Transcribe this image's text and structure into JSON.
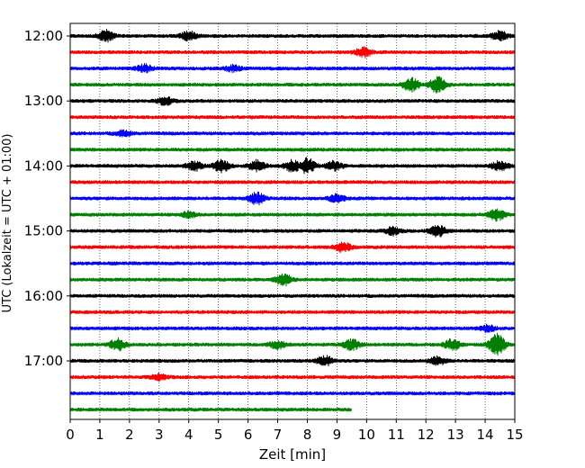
{
  "chart_data": {
    "type": "line",
    "title": "",
    "xlabel": "Zeit  [min]",
    "ylabel": "UTC (Lokalzeit = UTC + 01:00)",
    "xlim": [
      0,
      15
    ],
    "x_ticks": [
      0,
      1,
      2,
      3,
      4,
      5,
      6,
      7,
      8,
      9,
      10,
      11,
      12,
      13,
      14,
      15
    ],
    "y_tick_labels": [
      "12:00",
      "13:00",
      "14:00",
      "15:00",
      "16:00",
      "17:00"
    ],
    "grid": "vertical dotted",
    "colors": [
      "#000000",
      "#ff0000",
      "#0000ff",
      "#008000"
    ],
    "traces": [
      {
        "time": "12:00",
        "color": "#000000",
        "end_min": 15,
        "events": [
          {
            "t": 1.2,
            "amp": 6
          },
          {
            "t": 4.0,
            "amp": 5
          },
          {
            "t": 14.5,
            "amp": 5
          }
        ]
      },
      {
        "time": "12:15",
        "color": "#ff0000",
        "end_min": 15,
        "events": [
          {
            "t": 9.9,
            "amp": 5
          }
        ]
      },
      {
        "time": "12:30",
        "color": "#0000ff",
        "end_min": 15,
        "events": [
          {
            "t": 2.5,
            "amp": 4
          },
          {
            "t": 5.5,
            "amp": 3
          }
        ]
      },
      {
        "time": "12:45",
        "color": "#008000",
        "end_min": 15,
        "events": [
          {
            "t": 11.5,
            "amp": 7
          },
          {
            "t": 12.4,
            "amp": 9
          }
        ]
      },
      {
        "time": "13:00",
        "color": "#000000",
        "end_min": 15,
        "events": [
          {
            "t": 3.2,
            "amp": 4
          }
        ]
      },
      {
        "time": "13:15",
        "color": "#ff0000",
        "end_min": 15,
        "events": []
      },
      {
        "time": "13:30",
        "color": "#0000ff",
        "end_min": 15,
        "events": [
          {
            "t": 1.8,
            "amp": 3
          }
        ]
      },
      {
        "time": "13:45",
        "color": "#008000",
        "end_min": 15,
        "events": []
      },
      {
        "time": "14:00",
        "color": "#000000",
        "end_min": 15,
        "events": [
          {
            "t": 4.2,
            "amp": 5
          },
          {
            "t": 5.1,
            "amp": 6
          },
          {
            "t": 6.3,
            "amp": 6
          },
          {
            "t": 7.5,
            "amp": 6
          },
          {
            "t": 8.0,
            "amp": 8
          },
          {
            "t": 8.9,
            "amp": 5
          },
          {
            "t": 14.5,
            "amp": 5
          }
        ]
      },
      {
        "time": "14:15",
        "color": "#ff0000",
        "end_min": 15,
        "events": []
      },
      {
        "time": "14:30",
        "color": "#0000ff",
        "end_min": 15,
        "events": [
          {
            "t": 6.3,
            "amp": 6
          },
          {
            "t": 9.0,
            "amp": 4
          }
        ]
      },
      {
        "time": "14:45",
        "color": "#008000",
        "end_min": 15,
        "events": [
          {
            "t": 4.0,
            "amp": 3
          },
          {
            "t": 14.4,
            "amp": 6
          }
        ]
      },
      {
        "time": "15:00",
        "color": "#000000",
        "end_min": 15,
        "events": [
          {
            "t": 10.9,
            "amp": 4
          },
          {
            "t": 12.4,
            "amp": 6
          }
        ]
      },
      {
        "time": "15:15",
        "color": "#ff0000",
        "end_min": 15,
        "events": [
          {
            "t": 9.2,
            "amp": 5
          }
        ]
      },
      {
        "time": "15:30",
        "color": "#0000ff",
        "end_min": 15,
        "events": []
      },
      {
        "time": "15:45",
        "color": "#008000",
        "end_min": 15,
        "events": [
          {
            "t": 7.2,
            "amp": 6
          }
        ]
      },
      {
        "time": "16:00",
        "color": "#000000",
        "end_min": 15,
        "events": []
      },
      {
        "time": "16:15",
        "color": "#ff0000",
        "end_min": 15,
        "events": []
      },
      {
        "time": "16:30",
        "color": "#0000ff",
        "end_min": 15,
        "events": [
          {
            "t": 14.1,
            "amp": 3
          }
        ]
      },
      {
        "time": "16:45",
        "color": "#008000",
        "end_min": 15,
        "events": [
          {
            "t": 1.6,
            "amp": 6
          },
          {
            "t": 7.0,
            "amp": 4
          },
          {
            "t": 9.5,
            "amp": 6
          },
          {
            "t": 12.9,
            "amp": 6
          },
          {
            "t": 14.4,
            "amp": 12
          }
        ]
      },
      {
        "time": "17:00",
        "color": "#000000",
        "end_min": 15,
        "events": [
          {
            "t": 8.6,
            "amp": 5
          },
          {
            "t": 12.4,
            "amp": 4
          }
        ]
      },
      {
        "time": "17:15",
        "color": "#ff0000",
        "end_min": 15,
        "events": [
          {
            "t": 3.0,
            "amp": 3
          }
        ]
      },
      {
        "time": "17:30",
        "color": "#0000ff",
        "end_min": 15,
        "events": []
      },
      {
        "time": "17:45",
        "color": "#008000",
        "end_min": 9.5,
        "events": []
      }
    ]
  }
}
